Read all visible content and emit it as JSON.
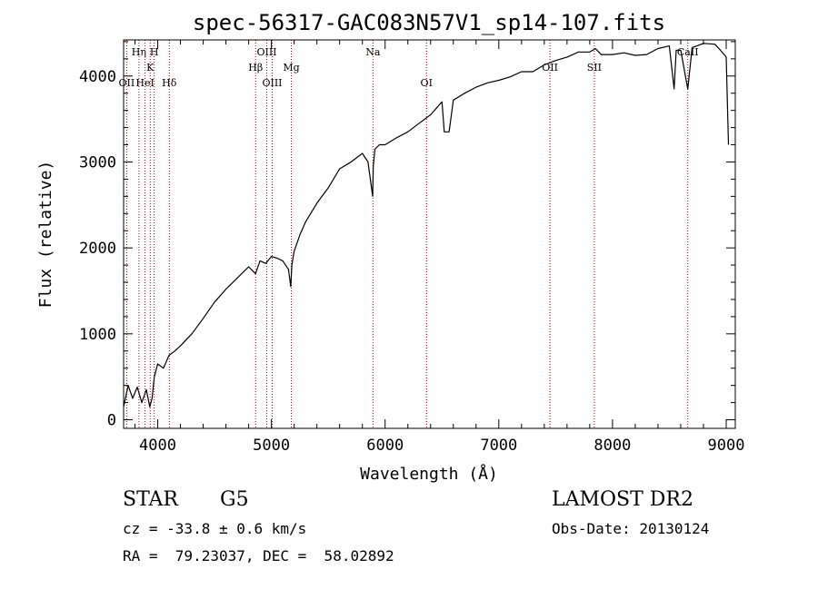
{
  "chart_data": {
    "type": "line",
    "title": "spec-56317-GAC083N57V1_sp14-107.fits",
    "xlabel": "Wavelength (Å)",
    "ylabel": "Flux (relative)",
    "xlim": [
      3700,
      9080
    ],
    "ylim": [
      -100,
      4420
    ],
    "x_ticks": [
      4000,
      5000,
      6000,
      7000,
      8000,
      9000
    ],
    "y_ticks": [
      0,
      1000,
      2000,
      3000,
      4000
    ],
    "x_tick_labels": [
      "4000",
      "5000",
      "6000",
      "7000",
      "8000",
      "9000"
    ],
    "y_tick_labels": [
      "0",
      "1000",
      "2000",
      "3000",
      "4000"
    ],
    "series": [
      {
        "name": "spectrum",
        "x": [
          3700,
          3740,
          3780,
          3820,
          3860,
          3900,
          3930,
          3950,
          3970,
          4000,
          4050,
          4100,
          4150,
          4200,
          4300,
          4400,
          4500,
          4600,
          4700,
          4800,
          4860,
          4900,
          4950,
          5000,
          5050,
          5100,
          5150,
          5170,
          5180,
          5200,
          5250,
          5300,
          5400,
          5500,
          5600,
          5700,
          5800,
          5850,
          5890,
          5896,
          5910,
          5950,
          6000,
          6100,
          6200,
          6300,
          6400,
          6500,
          6520,
          6563,
          6600,
          6700,
          6800,
          6900,
          7000,
          7100,
          7200,
          7300,
          7400,
          7500,
          7600,
          7700,
          7800,
          7850,
          7900,
          8000,
          8100,
          8200,
          8300,
          8400,
          8500,
          8542,
          8560,
          8600,
          8662,
          8700,
          8800,
          8900,
          8950,
          9000,
          9020
        ],
        "y": [
          150,
          400,
          250,
          380,
          200,
          350,
          150,
          250,
          500,
          650,
          600,
          750,
          800,
          860,
          1000,
          1180,
          1370,
          1520,
          1650,
          1780,
          1700,
          1850,
          1820,
          1900,
          1880,
          1850,
          1750,
          1550,
          1800,
          1960,
          2150,
          2300,
          2520,
          2700,
          2920,
          3000,
          3100,
          3000,
          2600,
          2950,
          3150,
          3200,
          3200,
          3280,
          3350,
          3450,
          3550,
          3700,
          3350,
          3350,
          3720,
          3800,
          3870,
          3920,
          3950,
          3990,
          4050,
          4050,
          4130,
          4180,
          4220,
          4280,
          4280,
          4320,
          4250,
          4250,
          4270,
          4240,
          4250,
          4320,
          4350,
          3850,
          4300,
          4300,
          3850,
          4330,
          4380,
          4370,
          4300,
          4220,
          3200
        ]
      }
    ],
    "line_labels": [
      {
        "label": "OII",
        "x": 3727,
        "row": 3
      },
      {
        "label": "Hη",
        "x": 3835,
        "row": 1
      },
      {
        "label": "HeI",
        "x": 3889,
        "row": 3
      },
      {
        "label": "K",
        "x": 3934,
        "row": 2
      },
      {
        "label": "H",
        "x": 3969,
        "row": 1
      },
      {
        "label": "Hδ",
        "x": 4102,
        "row": 3
      },
      {
        "label": "Hβ",
        "x": 4861,
        "row": 2
      },
      {
        "label": "OIII",
        "x": 4959,
        "row": 1
      },
      {
        "label": "OIII",
        "x": 5007,
        "row": 3
      },
      {
        "label": "Mg",
        "x": 5175,
        "row": 2
      },
      {
        "label": "Na",
        "x": 5893,
        "row": 1
      },
      {
        "label": "OI",
        "x": 6364,
        "row": 3
      },
      {
        "label": "OII",
        "x": 7450,
        "row": 2
      },
      {
        "label": "SII",
        "x": 7840,
        "row": 2
      },
      {
        "label": "CaII",
        "x": 8662,
        "row": 1
      }
    ]
  },
  "info": {
    "object_class": "STAR",
    "subclass": "G5",
    "survey": "LAMOST DR2",
    "velocity": "cz = -33.8 ± 0.6 km/s",
    "obs_date": "Obs-Date: 20130124",
    "coords": "RA =  79.23037, DEC =  58.02892"
  },
  "colors": {
    "spectrum": "#000000",
    "line_marker": "#b00000",
    "axis": "#000000",
    "background": "#ffffff"
  }
}
